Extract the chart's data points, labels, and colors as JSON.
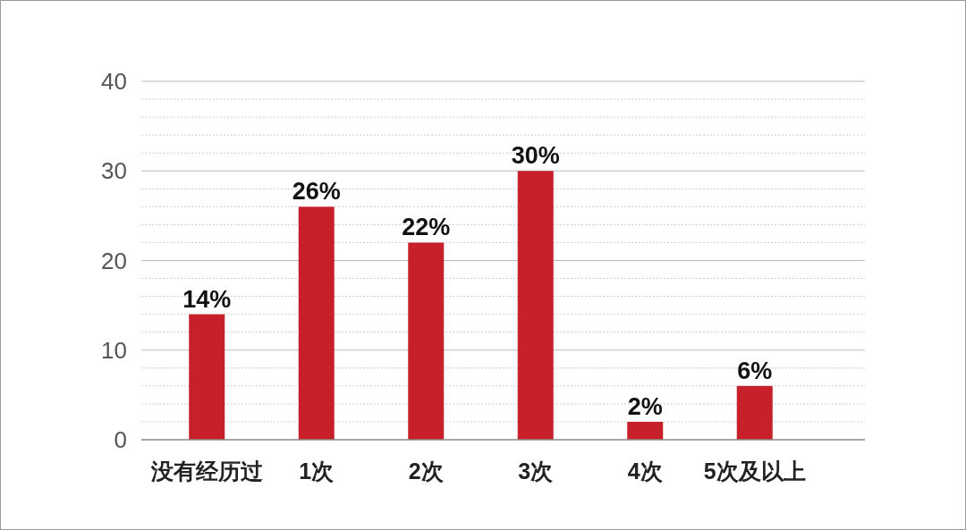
{
  "chart_data": {
    "type": "bar",
    "categories": [
      "没有经历过",
      "1次",
      "2次",
      "3次",
      "4次",
      "5次及以上"
    ],
    "values": [
      14,
      26,
      22,
      30,
      2,
      6
    ],
    "value_labels": [
      "14%",
      "26%",
      "22%",
      "30%",
      "2%",
      "6%"
    ],
    "color": "#c8202a",
    "ylim": [
      0,
      40
    ],
    "yticks": [
      0,
      {
        "value": 2,
        "label": null
      },
      {
        "value": 4,
        "label": null
      },
      {
        "value": 6,
        "label": null
      },
      {
        "value": 8,
        "label": null
      },
      10,
      {
        "value": 12,
        "label": null
      },
      {
        "value": 14,
        "label": null
      },
      {
        "value": 16,
        "label": null
      },
      {
        "value": 18,
        "label": null
      },
      20,
      {
        "value": 22,
        "label": null
      },
      {
        "value": 24,
        "label": null
      },
      {
        "value": 26,
        "label": null
      },
      {
        "value": 28,
        "label": null
      },
      30,
      {
        "value": 32,
        "label": null
      },
      {
        "value": 34,
        "label": null
      },
      {
        "value": 36,
        "label": null
      },
      {
        "value": 38,
        "label": null
      },
      40
    ],
    "grid": "y"
  }
}
